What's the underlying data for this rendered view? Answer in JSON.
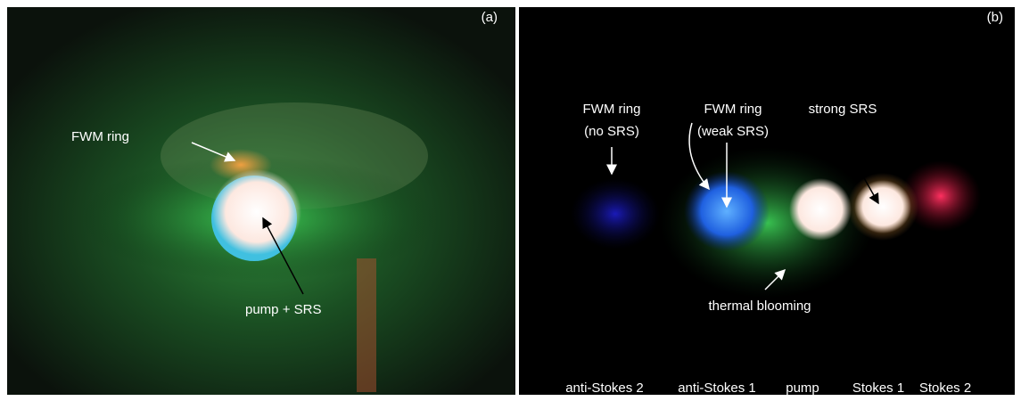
{
  "panels": [
    {
      "label": "(a)",
      "annotations": [
        "FWM ring",
        "pump + SRS"
      ]
    },
    {
      "label": "(b)",
      "annotations": [
        "FWM ring",
        "(no SRS)",
        "FWM ring",
        "(weak SRS)",
        "strong SRS",
        "thermal blooming"
      ],
      "bottom_labels": [
        "anti-Stokes 2",
        "anti-Stokes 1",
        "pump",
        "Stokes 1",
        "Stokes 2"
      ]
    }
  ]
}
